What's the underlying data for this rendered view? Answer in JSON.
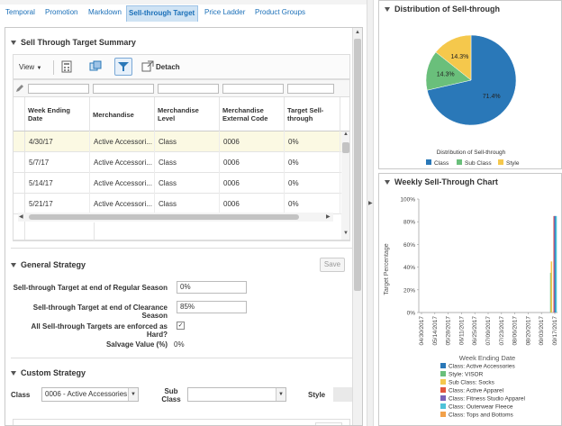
{
  "tabs": [
    {
      "label": "Temporal",
      "active": false
    },
    {
      "label": "Promotion",
      "active": false
    },
    {
      "label": "Markdown",
      "active": false
    },
    {
      "label": "Sell-through Target",
      "active": true
    },
    {
      "label": "Price Ladder",
      "active": false
    },
    {
      "label": "Product Groups",
      "active": false
    }
  ],
  "summary": {
    "title": "Sell Through Target Summary",
    "toolbar": {
      "view_label": "View",
      "detach_label": "Detach"
    },
    "columns": [
      "Week Ending Date",
      "Merchandise",
      "Merchandise Level",
      "Merchandise External Code",
      "Target Sell-through"
    ],
    "rows": [
      [
        "4/30/17",
        "Active Accessori...",
        "Class",
        "0006",
        "0%"
      ],
      [
        "5/7/17",
        "Active Accessori...",
        "Class",
        "0006",
        "0%"
      ],
      [
        "5/14/17",
        "Active Accessori...",
        "Class",
        "0006",
        "0%"
      ],
      [
        "5/21/17",
        "Active Accessori...",
        "Class",
        "0006",
        "0%"
      ]
    ]
  },
  "general": {
    "title": "General Strategy",
    "save_label": "Save",
    "regular_label": "Sell-through Target at end of Regular Season",
    "regular_value": "0%",
    "clearance_label": "Sell-through Target at end of Clearance Season",
    "clearance_value": "85%",
    "hard_label": "All Sell-through Targets are enforced as Hard?",
    "hard_checked": true,
    "salvage_label": "Salvage Value (%)",
    "salvage_value": "0%"
  },
  "custom": {
    "title": "Custom Strategy",
    "class_label": "Class",
    "class_value": "0006 - Active Accessories",
    "subclass_label": "Sub Class",
    "subclass_value": "",
    "style_label": "Style"
  },
  "distribution": {
    "title": "Distribution of Sell-through",
    "chart_data": {
      "type": "pie",
      "title": "Distribution of Sell-through",
      "slices": [
        {
          "name": "Class",
          "value": 71.4,
          "label": "71.4%",
          "color": "#2a78b8"
        },
        {
          "name": "Sub Class",
          "value": 14.3,
          "label": "14.3%",
          "color": "#6abf7b"
        },
        {
          "name": "Style",
          "value": 14.3,
          "label": "14.3%",
          "color": "#f5c84c"
        }
      ],
      "legend_position": "bottom"
    }
  },
  "weekly": {
    "title": "Weekly Sell-Through Chart",
    "chart_data": {
      "type": "bar",
      "ylabel": "Target Percentage",
      "xlabel": "Week Ending Date",
      "ylim": [
        0,
        100
      ],
      "yticks": [
        "0%",
        "20%",
        "40%",
        "60%",
        "80%",
        "100%"
      ],
      "categories": [
        "04/30/2017",
        "05/14/2017",
        "05/28/2017",
        "06/11/2017",
        "06/25/2017",
        "07/09/2017",
        "07/23/2017",
        "08/06/2017",
        "08/20/2017",
        "09/03/2017",
        "09/17/2017"
      ],
      "series": [
        {
          "name": "Class: Active Accessories",
          "color": "#2a78b8"
        },
        {
          "name": "Style: VISOR",
          "color": "#6abf7b"
        },
        {
          "name": "Sub Class: Socks",
          "color": "#f5c84c"
        },
        {
          "name": "Class: Active Apparel",
          "color": "#e2553e"
        },
        {
          "name": "Class: Fitness Studio Apparel",
          "color": "#7b62b8"
        },
        {
          "name": "Class: Outerwear Fleece",
          "color": "#4fc3d9"
        },
        {
          "name": "Class: Tops and Bottoms",
          "color": "#f2a14a"
        }
      ],
      "bars": [
        {
          "series": 1,
          "x_index": 9.7,
          "value": 35
        },
        {
          "series": 2,
          "x_index": 9.75,
          "value": 45
        },
        {
          "series": 3,
          "x_index": 9.95,
          "value": 85
        },
        {
          "series": 4,
          "x_index": 10.0,
          "value": 85
        },
        {
          "series": 0,
          "x_index": 10.05,
          "value": 85
        },
        {
          "series": 5,
          "x_index": 10.1,
          "value": 85
        }
      ],
      "grid": false,
      "legend_position": "bottom"
    }
  }
}
